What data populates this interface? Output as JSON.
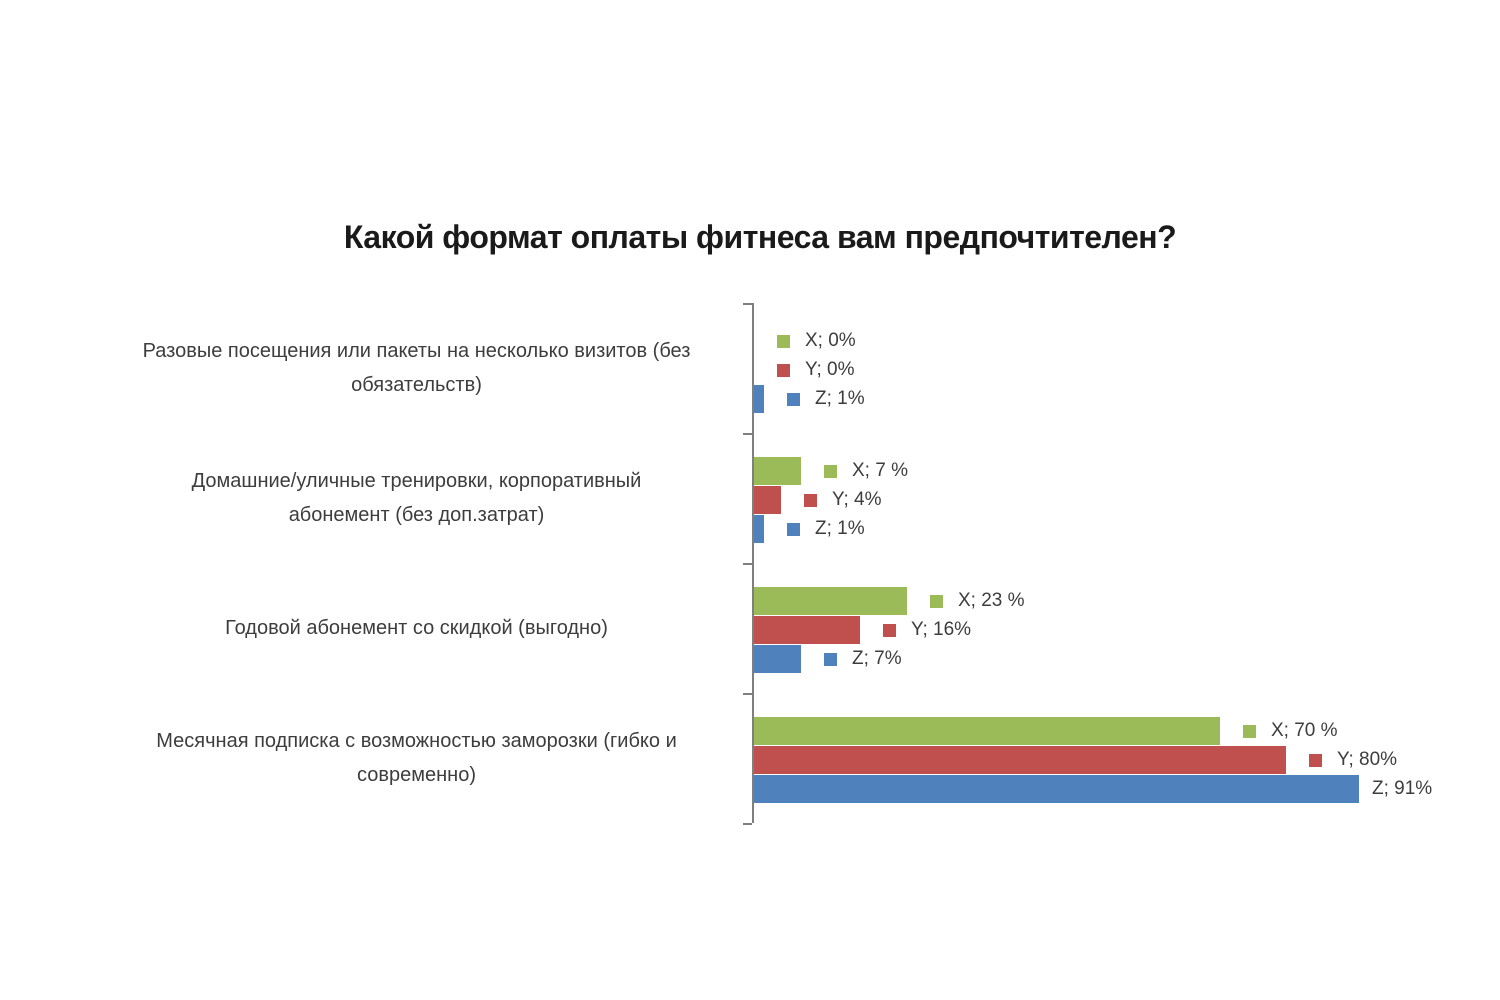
{
  "title": "Какой формат оплаты фитнеса вам предпочтителен?",
  "colors": {
    "series_x": "#9BBB59",
    "series_y": "#C0504D",
    "series_z": "#4F81BD",
    "axis": "#7F7F7F",
    "title_text": "#1A1A1A",
    "label_text": "#3D3D3D",
    "background": "#FFFFFF"
  },
  "chart_data": {
    "type": "bar",
    "orientation": "horizontal",
    "title": "Какой формат оплаты фитнеса вам предпочтителен?",
    "xlabel": "",
    "ylabel": "",
    "unit": "%",
    "xlim": [
      0,
      100
    ],
    "grid": "off",
    "legend": "none (legend keys shown next to each data label)",
    "series": [
      "X",
      "Y",
      "Z"
    ],
    "series_colors": {
      "X": "#9BBB59",
      "Y": "#C0504D",
      "Z": "#4F81BD"
    },
    "categories": [
      {
        "label_lines": [
          "Разовые посещения или пакеты на несколько визитов (без",
          "обязательств)"
        ],
        "points": [
          {
            "series": "X",
            "value": 0,
            "label": "X; 0%",
            "legend_key": true
          },
          {
            "series": "Y",
            "value": 0,
            "label": "Y; 0%",
            "legend_key": true
          },
          {
            "series": "Z",
            "value": 1,
            "label": "Z; 1%",
            "legend_key": true
          }
        ]
      },
      {
        "label_lines": [
          "Домашние/уличные тренировки, корпоративный",
          "абонемент (без доп.затрат)"
        ],
        "points": [
          {
            "series": "X",
            "value": 7,
            "label": "X; 7 %",
            "legend_key": true
          },
          {
            "series": "Y",
            "value": 4,
            "label": "Y; 4%",
            "legend_key": true
          },
          {
            "series": "Z",
            "value": 1,
            "label": "Z; 1%",
            "legend_key": true
          }
        ]
      },
      {
        "label_lines": [
          "Годовой абонемент со скидкой (выгодно)"
        ],
        "points": [
          {
            "series": "X",
            "value": 23,
            "label": "X; 23 %",
            "legend_key": true
          },
          {
            "series": "Y",
            "value": 16,
            "label": "Y; 16%",
            "legend_key": true
          },
          {
            "series": "Z",
            "value": 7,
            "label": "Z; 7%",
            "legend_key": true
          }
        ]
      },
      {
        "label_lines": [
          "Месячная подписка с возможностью заморозки (гибко и",
          "современно)"
        ],
        "points": [
          {
            "series": "X",
            "value": 70,
            "label": "X; 70 %",
            "legend_key": true
          },
          {
            "series": "Y",
            "value": 80,
            "label": "Y; 80%",
            "legend_key": true
          },
          {
            "series": "Z",
            "value": 91,
            "label": "Z; 91%",
            "legend_key": false
          }
        ]
      }
    ]
  }
}
